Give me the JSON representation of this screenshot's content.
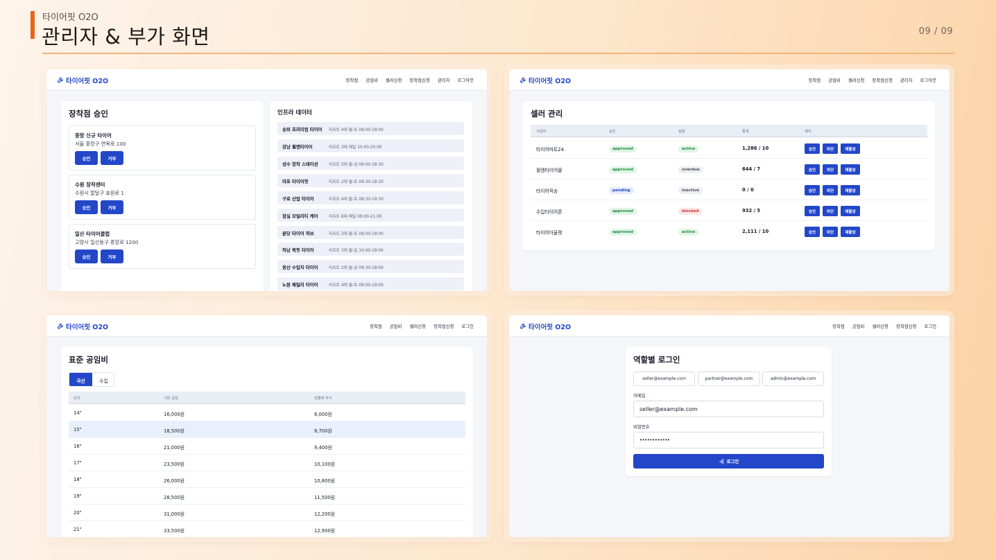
{
  "header": {
    "subtitle": "타이어핏 O2O",
    "title": "관리자 & 부가 화면",
    "page": "09 / 09"
  },
  "brand": "타이어핏 O2O",
  "nav_admin": [
    "장착점",
    "공임비",
    "셀러신청",
    "장착점신청",
    "관리자",
    "로그아웃"
  ],
  "nav_public": [
    "장착점",
    "공임비",
    "셀러신청",
    "장착점신청",
    "로그인"
  ],
  "approval": {
    "title": "장착점 승인",
    "items": [
      {
        "name": "중랑 신규 타이어",
        "address": "서울 중랑구 면목로 100"
      },
      {
        "name": "수원 장착센터",
        "address": "수원시 팔달구 효원로 1"
      },
      {
        "name": "일산 타이어클럽",
        "address": "고양시 일산동구 중앙로 1200"
      }
    ],
    "approve_label": "승인",
    "reject_label": "거부"
  },
  "infra": {
    "title": "인프라 데이터",
    "rows": [
      {
        "name": "송파 프리미엄 타이어",
        "meta": "리프트 4대  월-토 09:00-19:00"
      },
      {
        "name": "강남 휠앤타이어",
        "meta": "리프트 3대  매일 10:00-20:00"
      },
      {
        "name": "성수 장착 스테이션",
        "meta": "리프트 5대  월-금 09:00-18:30"
      },
      {
        "name": "마포 타이어핏",
        "meta": "리프트 2대  월-토 09:30-18:30"
      },
      {
        "name": "구로 산업 타이어",
        "meta": "리프트 4대  월-토 08:30-19:30"
      },
      {
        "name": "잠실 모빌리티 케어",
        "meta": "리프트 6대  매일 09:00-21:00"
      },
      {
        "name": "분당 타이어 허브",
        "meta": "리프트 3대  월-토 09:00-19:00"
      },
      {
        "name": "하남 퀵핏 타이어",
        "meta": "리프트 3대  월-일 10:00-19:00"
      },
      {
        "name": "용산 수입차 타이어",
        "meta": "리프트 2대  월-금 09:30-18:00"
      },
      {
        "name": "노원 패밀리 타이어",
        "meta": "리프트 4대  월-토 09:00-19:00"
      }
    ]
  },
  "sellers": {
    "title": "셀러 관리",
    "columns": [
      "사업자",
      "승인",
      "빌링",
      "통계",
      "제어"
    ],
    "rows": [
      {
        "name": "타이어마트24",
        "approval": "approved",
        "billing": "active",
        "stats": "1,286 / 10"
      },
      {
        "name": "휠앤타이어몰",
        "approval": "approved",
        "billing": "overdue",
        "stats": "644 / 7"
      },
      {
        "name": "타이어직송",
        "approval": "pending",
        "billing": "inactive",
        "stats": "0 / 0"
      },
      {
        "name": "수입타이어존",
        "approval": "approved",
        "billing": "blocked",
        "stats": "932 / 5"
      },
      {
        "name": "타이어아울렛",
        "approval": "approved",
        "billing": "active",
        "stats": "2,111 / 10"
      }
    ],
    "actions": [
      "승인",
      "차단",
      "재활성"
    ]
  },
  "labor": {
    "title": "표준 공임비",
    "tabs": [
      "국산",
      "수입"
    ],
    "columns": [
      "인치",
      "기본 공임",
      "런플랫 추가"
    ],
    "rows": [
      {
        "inch": "14\"",
        "base": "16,000원",
        "runflat": "8,000원"
      },
      {
        "inch": "15\"",
        "base": "18,500원",
        "runflat": "8,700원"
      },
      {
        "inch": "16\"",
        "base": "21,000원",
        "runflat": "9,400원"
      },
      {
        "inch": "17\"",
        "base": "23,500원",
        "runflat": "10,100원"
      },
      {
        "inch": "18\"",
        "base": "26,000원",
        "runflat": "10,800원"
      },
      {
        "inch": "19\"",
        "base": "28,500원",
        "runflat": "11,500원"
      },
      {
        "inch": "20\"",
        "base": "31,000원",
        "runflat": "12,200원"
      },
      {
        "inch": "21\"",
        "base": "33,500원",
        "runflat": "12,900원"
      }
    ]
  },
  "login": {
    "title": "역할별 로그인",
    "quick": [
      "seller@example.com",
      "partner@example.com",
      "admin@example.com"
    ],
    "email_label": "이메일",
    "email_value": "seller@example.com",
    "password_label": "비밀번호",
    "password_value": "••••••••••••",
    "submit_label": "로그인"
  },
  "colors": {
    "primary": "#2347c9",
    "accent": "#e8641a"
  },
  "icons": {
    "brand": "wrench-icon",
    "submit": "login-icon"
  }
}
